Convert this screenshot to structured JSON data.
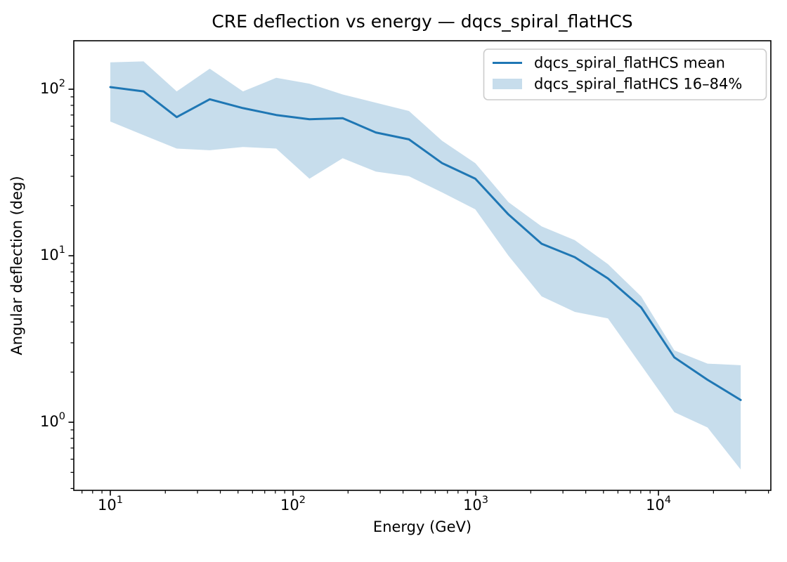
{
  "figure": {
    "title": "CRE deflection vs energy — dqcs_spiral_flatHCS",
    "xlabel": "Energy (GeV)",
    "ylabel": "Angular deflection (deg)"
  },
  "legend": {
    "mean_label": "dqcs_spiral_flatHCS mean",
    "band_label": "dqcs_spiral_flatHCS 16–84%"
  },
  "colors": {
    "line": "#1f77b4",
    "band": "#1f77b4",
    "band_opacity": 0.25,
    "axis": "#000000",
    "legend_border": "#cccccc"
  },
  "chart_data": {
    "type": "line",
    "title": "CRE deflection vs energy — dqcs_spiral_flatHCS",
    "xlabel": "Energy (GeV)",
    "ylabel": "Angular deflection (deg)",
    "xscale": "log",
    "yscale": "log",
    "xlim": [
      6.31,
      41210
    ],
    "ylim": [
      0.39,
      195.5
    ],
    "grid": false,
    "legend_position": "upper right",
    "x": [
      10,
      15.2,
      23.1,
      35,
      53.2,
      80.9,
      123,
      187,
      284,
      431,
      654,
      994,
      1510,
      2293,
      3484,
      5292,
      8040,
      12213,
      18553,
      28184
    ],
    "series": [
      {
        "name": "dqcs_spiral_flatHCS mean",
        "role": "mean",
        "values": [
          103,
          97,
          68,
          87,
          77,
          70,
          66,
          67,
          55,
          50,
          36,
          29,
          17.7,
          11.8,
          9.8,
          7.3,
          4.9,
          2.45,
          1.8,
          1.36
        ]
      },
      {
        "name": "dqcs_spiral_flatHCS 16th percentile (band lower edge)",
        "role": "band_low",
        "values": [
          64,
          53,
          44,
          43,
          45,
          44,
          29,
          38.5,
          32,
          30,
          24,
          19,
          10,
          5.7,
          4.6,
          4.2,
          2.2,
          1.15,
          0.93,
          0.52
        ]
      },
      {
        "name": "dqcs_spiral_flatHCS 84th percentile (band upper edge)",
        "role": "band_high",
        "values": [
          145,
          147,
          97,
          133,
          97,
          117,
          108,
          93,
          83,
          74,
          49,
          36,
          21,
          15,
          12.4,
          8.9,
          5.7,
          2.7,
          2.25,
          2.2
        ]
      }
    ],
    "x_major_ticks": [
      {
        "value": 10,
        "exp": 1
      },
      {
        "value": 100,
        "exp": 2
      },
      {
        "value": 1000,
        "exp": 3
      },
      {
        "value": 10000,
        "exp": 4
      }
    ],
    "y_major_ticks": [
      {
        "value": 1,
        "exp": 0
      },
      {
        "value": 10,
        "exp": 1
      },
      {
        "value": 100,
        "exp": 2
      }
    ]
  }
}
